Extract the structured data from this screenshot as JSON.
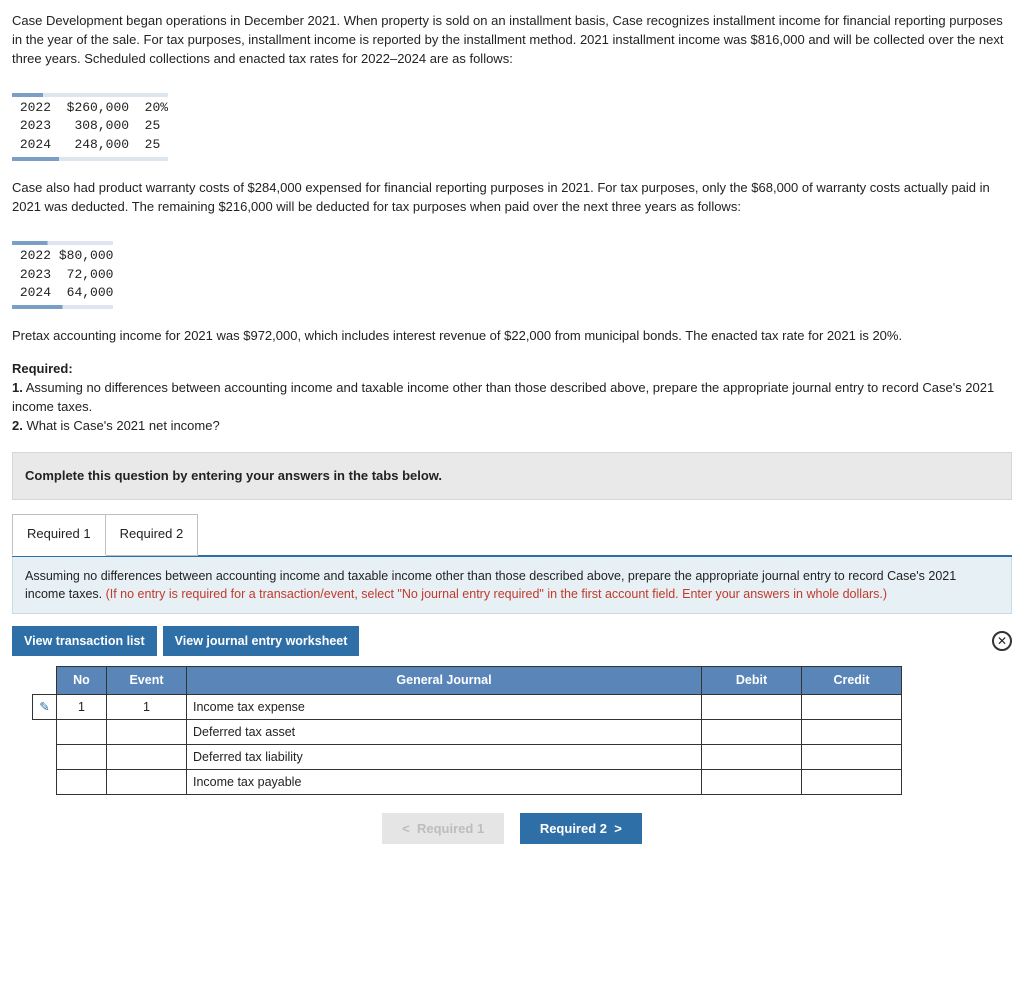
{
  "paragraph1": "Case Development began operations in December 2021. When property is sold on an installment basis, Case recognizes installment income for financial reporting purposes in the year of the sale. For tax purposes, installment income is reported by the installment method. 2021 installment income was $816,000 and will be collected over the next three years. Scheduled collections and enacted tax rates for 2022–2024 are as follows:",
  "collections_table": {
    "rows": [
      {
        "year": "2022",
        "amount": "$260,000",
        "rate": "20%"
      },
      {
        "year": "2023",
        "amount": " 308,000",
        "rate": "25"
      },
      {
        "year": "2024",
        "amount": " 248,000",
        "rate": "25"
      }
    ]
  },
  "paragraph2": "Case also had product warranty costs of $284,000 expensed for financial reporting purposes in 2021. For tax purposes, only the $68,000 of warranty costs actually paid in 2021 was deducted. The remaining $216,000 will be deducted for tax purposes when paid over the next three years as follows:",
  "warranty_table": {
    "rows": [
      {
        "year": "2022",
        "amount": "$80,000"
      },
      {
        "year": "2023",
        "amount": " 72,000"
      },
      {
        "year": "2024",
        "amount": " 64,000"
      }
    ]
  },
  "paragraph3": "Pretax accounting income for 2021 was $972,000, which includes interest revenue of $22,000 from municipal bonds. The enacted tax rate for 2021 is 20%.",
  "required_label": "Required:",
  "req1": "1. Assuming no differences between accounting income and taxable income other than those described above, prepare the appropriate journal entry to record Case's 2021 income taxes.",
  "req2": "2. What is Case's 2021 net income?",
  "instruction": "Complete this question by entering your answers in the tabs below.",
  "tabs": {
    "t1": "Required 1",
    "t2": "Required 2"
  },
  "tab_body_main": "Assuming no differences between accounting income and taxable income other than those described above, prepare the appropriate journal entry to record Case's 2021 income taxes. ",
  "tab_body_hint": "(If no entry is required for a transaction/event, select \"No journal entry required\" in the first account field. Enter your answers in whole dollars.)",
  "buttons": {
    "vtl": "View transaction list",
    "vjw": "View journal entry worksheet"
  },
  "journal": {
    "headers": {
      "no": "No",
      "event": "Event",
      "gj": "General Journal",
      "debit": "Debit",
      "credit": "Credit"
    },
    "rows": [
      {
        "no": "1",
        "event": "1",
        "account": "Income tax expense",
        "debit": "",
        "credit": ""
      },
      {
        "no": "",
        "event": "",
        "account": "Deferred tax asset",
        "debit": "",
        "credit": ""
      },
      {
        "no": "",
        "event": "",
        "account": "Deferred tax liability",
        "debit": "",
        "credit": ""
      },
      {
        "no": "",
        "event": "",
        "account": "Income tax payable",
        "debit": "",
        "credit": ""
      }
    ]
  },
  "nav": {
    "prev": "Required 1",
    "next": "Required 2"
  },
  "colors": {
    "button_bg": "#2f6fa7",
    "th_bg": "#5a85b8",
    "tab_body_bg": "#e7f0f5",
    "hint_color": "#c23a2b"
  }
}
